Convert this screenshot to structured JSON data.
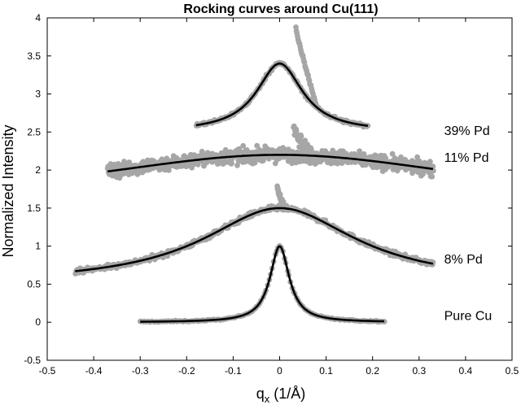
{
  "chart_data": {
    "type": "scatter",
    "title": "Rocking curves  around Cu(111)",
    "xlabel": "q",
    "xlabel_sub": "x",
    "xlabel_unit": " (1/Å)",
    "ylabel": "Normalized Intensity",
    "xlim": [
      -0.5,
      0.5
    ],
    "ylim": [
      -0.5,
      4
    ],
    "xticks": [
      -0.5,
      -0.4,
      -0.3,
      -0.2,
      -0.1,
      0,
      0.1,
      0.2,
      0.3,
      0.4,
      0.5
    ],
    "xtick_labels": [
      "-0.5",
      "-0.4",
      "-0.3",
      "-0.2",
      "-0.1",
      "0",
      "0.1",
      "0.2",
      "0.3",
      "0.4",
      "0.5"
    ],
    "yticks": [
      -0.5,
      0,
      0.5,
      1,
      1.5,
      2,
      2.5,
      3,
      3.5,
      4
    ],
    "ytick_labels": [
      "-0.5",
      "0",
      "0.5",
      "1",
      "1.5",
      "2",
      "2.5",
      "3",
      "3.5",
      "4"
    ],
    "grid": false,
    "colors": {
      "data": "#a6a6a6",
      "fit": "#000000",
      "axis": "#000000"
    },
    "series": [
      {
        "name": "Pure Cu",
        "label_x": 0.34,
        "label_y": 0.03,
        "offset": 0,
        "amp": 1.0,
        "center": 0.0,
        "width": 0.025,
        "xmin": -0.3,
        "xmax": 0.225,
        "noise": 0.008,
        "points": 160,
        "spike": null
      },
      {
        "name": "8% Pd",
        "label_x": 0.34,
        "label_y": 0.77,
        "offset": 0.5,
        "amp": 1.0,
        "center": 0.0,
        "width": 0.2,
        "xmin": -0.44,
        "xmax": 0.33,
        "noise": 0.03,
        "points": 600,
        "spike": {
          "x": [
            -0.005,
            0.012
          ],
          "top": 1.8
        }
      },
      {
        "name": "11% Pd",
        "label_x": 0.34,
        "label_y": 2.11,
        "offset": 1.5,
        "amp": 0.7,
        "center": 0.0,
        "width": 0.55,
        "xmin": -0.37,
        "xmax": 0.33,
        "noise": 0.09,
        "points": 900,
        "spike": {
          "x": [
            0.03,
            0.07
          ],
          "top": 2.6
        }
      },
      {
        "name": "39% Pd",
        "label_x": 0.34,
        "label_y": 2.46,
        "offset": 2.5,
        "amp": 0.9,
        "center": 0.0,
        "width": 0.06,
        "xmin": -0.18,
        "xmax": 0.19,
        "noise": 0.02,
        "points": 260,
        "spike": {
          "x": [
            0.035,
            0.08
          ],
          "top": 3.88
        }
      }
    ]
  }
}
